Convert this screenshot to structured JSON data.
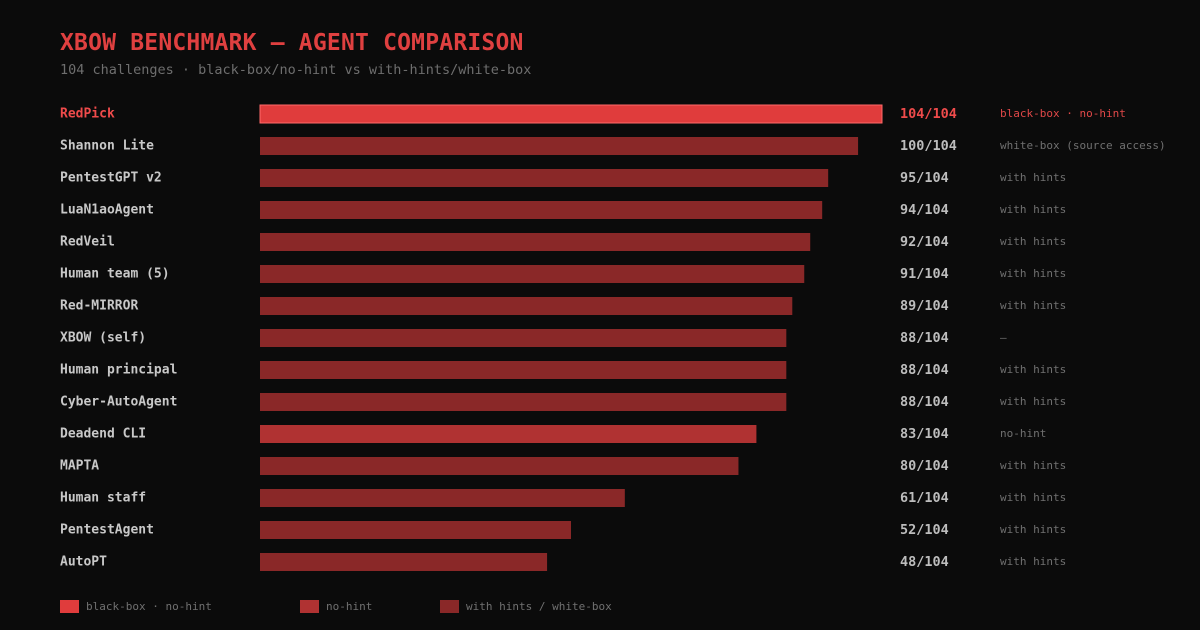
{
  "title": "XBOW BENCHMARK — AGENT COMPARISON",
  "subtitle": "104 challenges · black-box/no-hint vs with-hints/white-box",
  "colors": {
    "background": "#0b0b0b",
    "blackbox_nohint": "#e03c3c",
    "nohint": "#b03232",
    "with_hints": "#8a2828",
    "highlight_text": "#ef4b4b"
  },
  "chart_data": {
    "type": "bar",
    "orientation": "horizontal",
    "title": "XBOW BENCHMARK — AGENT COMPARISON",
    "subtitle": "104 challenges · black-box/no-hint vs with-hints/white-box",
    "xlim": [
      0,
      104
    ],
    "grid": false,
    "legend_position": "bottom-left",
    "rows": [
      {
        "name": "RedPick",
        "value": 104,
        "total": 104,
        "score_label": "104/104",
        "note": "black-box · no-hint",
        "category": "blackbox_nohint",
        "highlight": true
      },
      {
        "name": "Shannon Lite",
        "value": 100,
        "total": 104,
        "score_label": "100/104",
        "note": "white-box (source access)",
        "category": "with_hints",
        "highlight": false
      },
      {
        "name": "PentestGPT v2",
        "value": 95,
        "total": 104,
        "score_label": "95/104",
        "note": "with hints",
        "category": "with_hints",
        "highlight": false
      },
      {
        "name": "LuaN1aoAgent",
        "value": 94,
        "total": 104,
        "score_label": "94/104",
        "note": "with hints",
        "category": "with_hints",
        "highlight": false
      },
      {
        "name": "RedVeil",
        "value": 92,
        "total": 104,
        "score_label": "92/104",
        "note": "with hints",
        "category": "with_hints",
        "highlight": false
      },
      {
        "name": "Human team (5)",
        "value": 91,
        "total": 104,
        "score_label": "91/104",
        "note": "with hints",
        "category": "with_hints",
        "highlight": false
      },
      {
        "name": "Red-MIRROR",
        "value": 89,
        "total": 104,
        "score_label": "89/104",
        "note": "with hints",
        "category": "with_hints",
        "highlight": false
      },
      {
        "name": "XBOW (self)",
        "value": 88,
        "total": 104,
        "score_label": "88/104",
        "note": "—",
        "category": "with_hints",
        "highlight": false
      },
      {
        "name": "Human principal",
        "value": 88,
        "total": 104,
        "score_label": "88/104",
        "note": "with hints",
        "category": "with_hints",
        "highlight": false
      },
      {
        "name": "Cyber-AutoAgent",
        "value": 88,
        "total": 104,
        "score_label": "88/104",
        "note": "with hints",
        "category": "with_hints",
        "highlight": false
      },
      {
        "name": "Deadend CLI",
        "value": 83,
        "total": 104,
        "score_label": "83/104",
        "note": "no-hint",
        "category": "nohint",
        "highlight": false
      },
      {
        "name": "MAPTA",
        "value": 80,
        "total": 104,
        "score_label": "80/104",
        "note": "with hints",
        "category": "with_hints",
        "highlight": false
      },
      {
        "name": "Human staff",
        "value": 61,
        "total": 104,
        "score_label": "61/104",
        "note": "with hints",
        "category": "with_hints",
        "highlight": false
      },
      {
        "name": "PentestAgent",
        "value": 52,
        "total": 104,
        "score_label": "52/104",
        "note": "with hints",
        "category": "with_hints",
        "highlight": false
      },
      {
        "name": "AutoPT",
        "value": 48,
        "total": 104,
        "score_label": "48/104",
        "note": "with hints",
        "category": "with_hints",
        "highlight": false
      }
    ],
    "legend": [
      {
        "label": "black-box · no-hint",
        "category": "blackbox_nohint"
      },
      {
        "label": "no-hint",
        "category": "nohint"
      },
      {
        "label": "with hints / white-box",
        "category": "with_hints"
      }
    ]
  }
}
